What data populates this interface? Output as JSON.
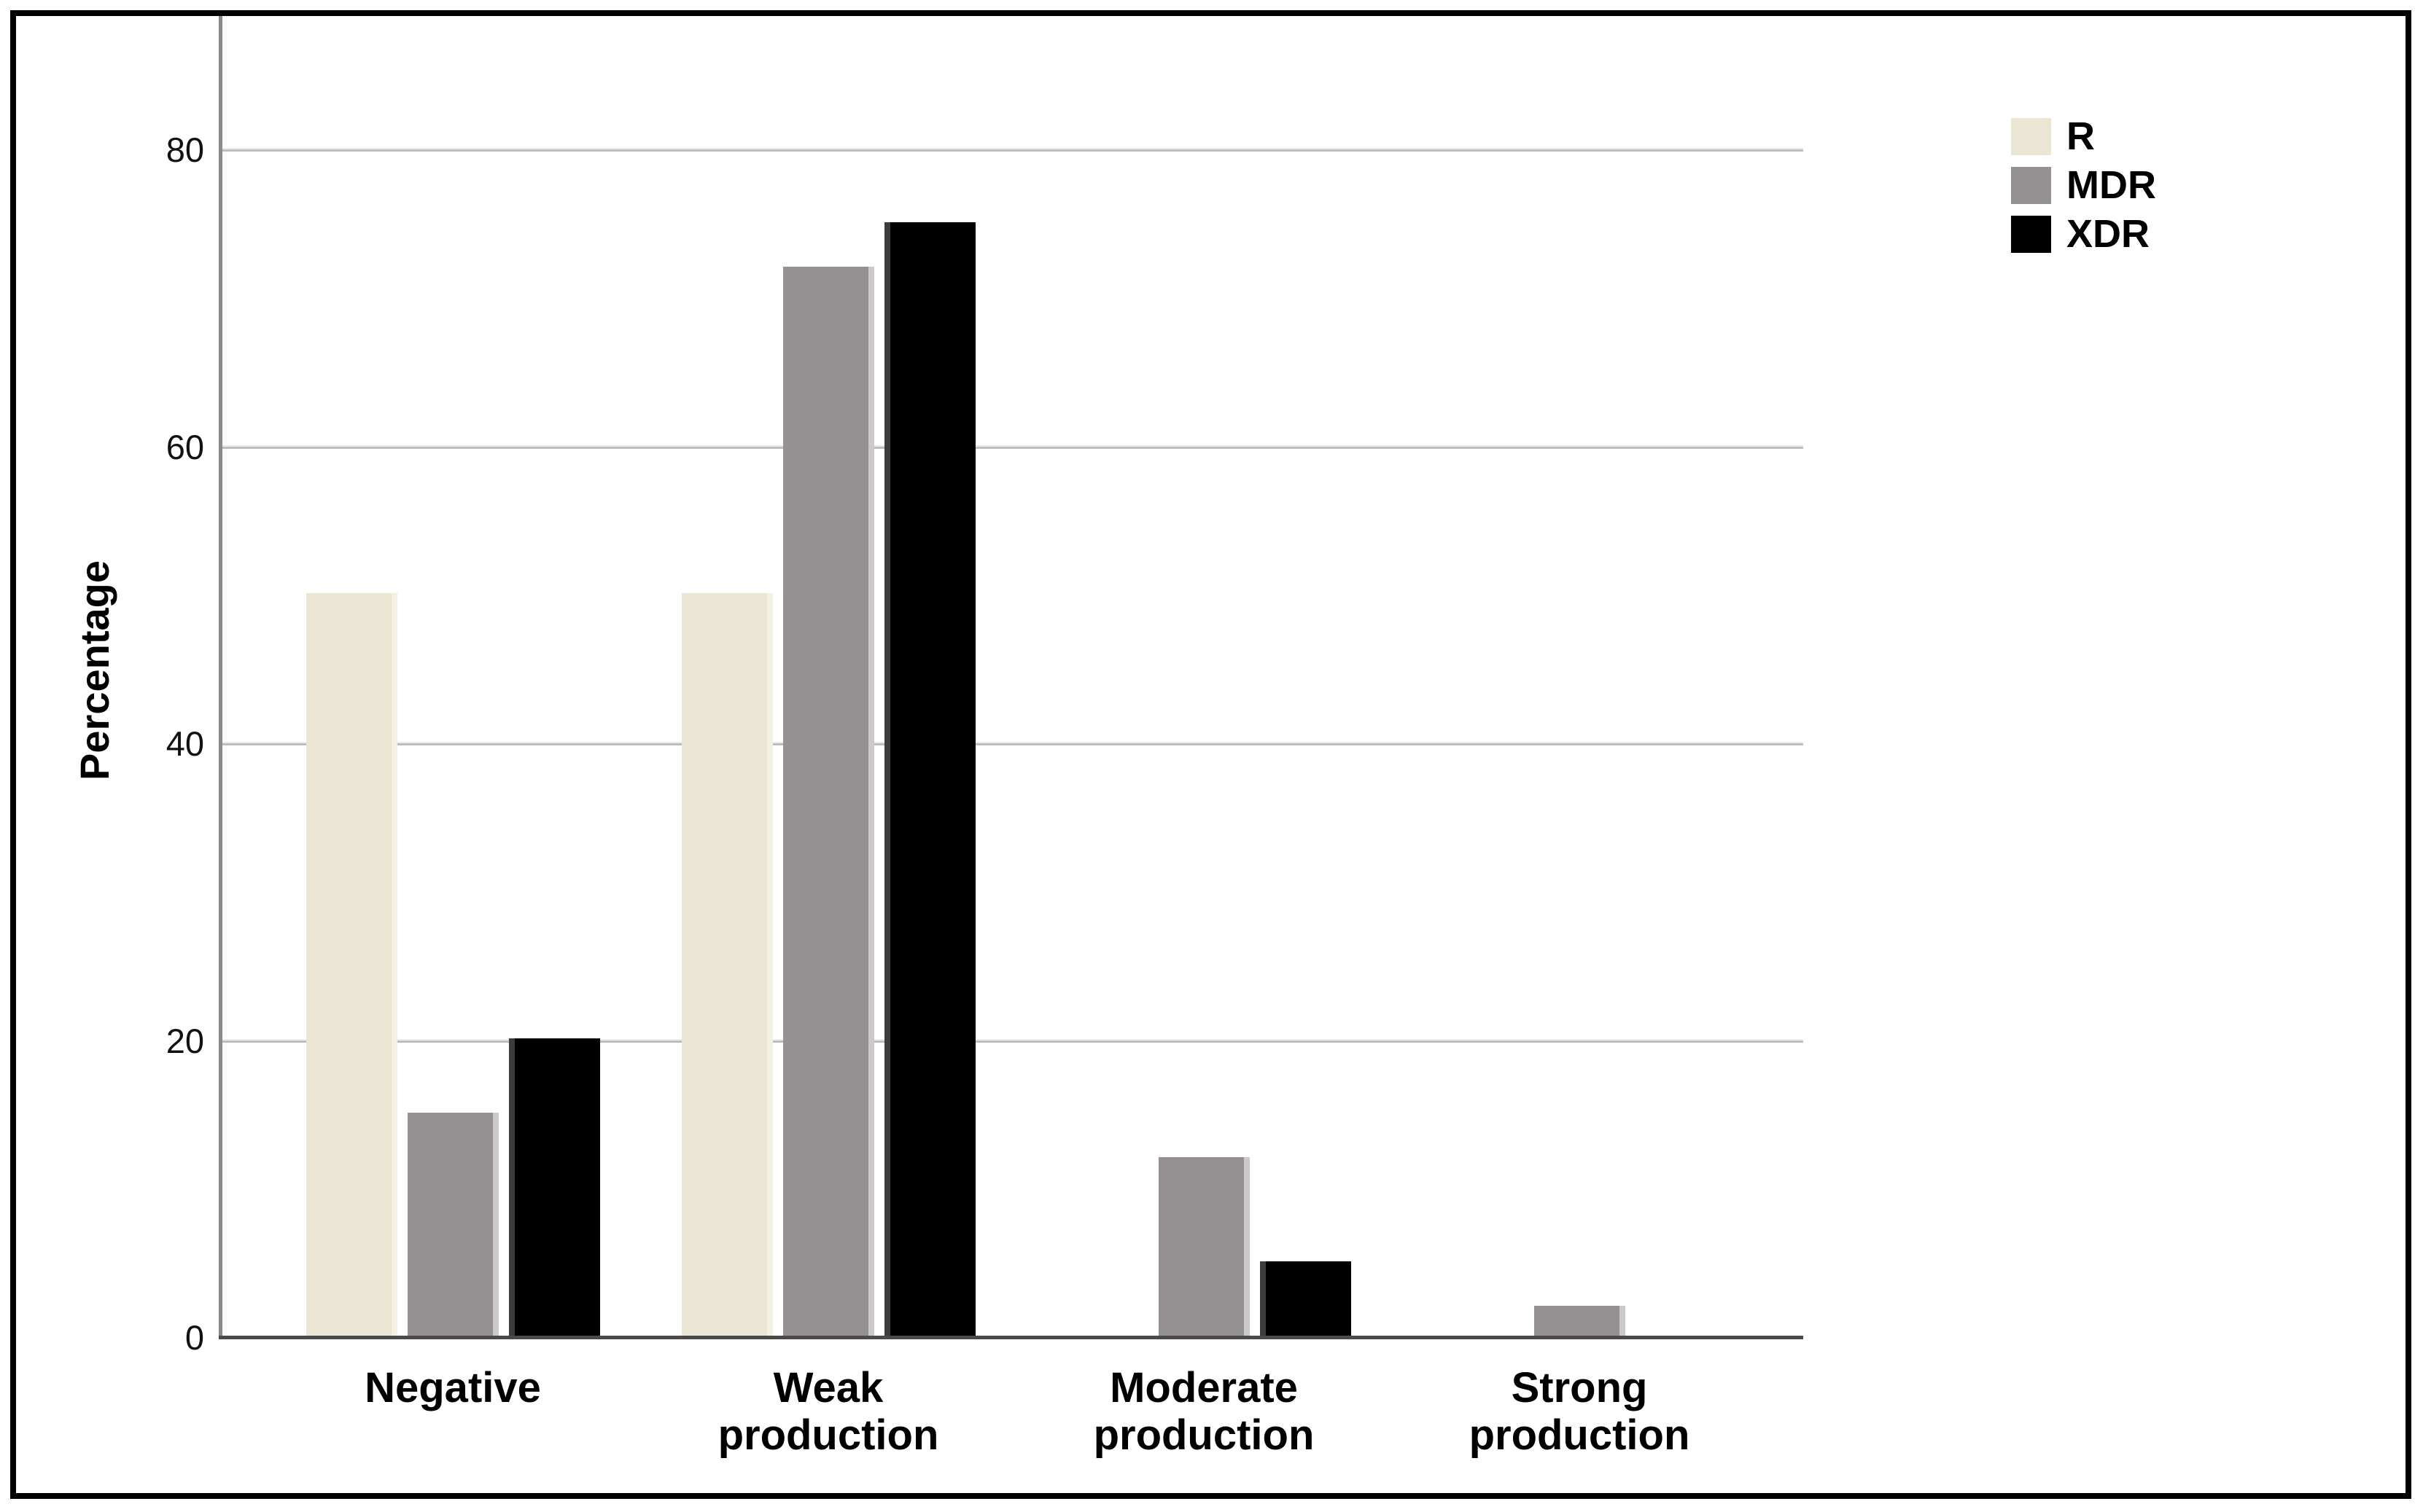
{
  "chart_data": {
    "type": "bar",
    "title": "",
    "xlabel": "",
    "ylabel": "Percentage",
    "ylim": [
      0,
      85
    ],
    "yticks": [
      0,
      20,
      40,
      60,
      80
    ],
    "grid": "horizontal",
    "legend_position": "top-right",
    "background_color": "#ffffff",
    "categories": [
      "Negative",
      "Weak\nproduction",
      "Moderate\nproduction",
      "Strong\nproduction"
    ],
    "series": [
      {
        "name": "R",
        "color": "#eae6d3",
        "edge_color": "#f4f1e4",
        "edge_side": "right",
        "values": [
          50,
          50,
          0,
          0
        ]
      },
      {
        "name": "MDR",
        "color": "#959192",
        "edge_color": "#cbc9c9",
        "edge_side": "right",
        "values": [
          15,
          72,
          12,
          2
        ]
      },
      {
        "name": "XDR",
        "color": "#000000",
        "edge_color": "#3c3c3c",
        "edge_side": "left",
        "values": [
          20,
          75,
          5,
          0
        ]
      }
    ]
  }
}
